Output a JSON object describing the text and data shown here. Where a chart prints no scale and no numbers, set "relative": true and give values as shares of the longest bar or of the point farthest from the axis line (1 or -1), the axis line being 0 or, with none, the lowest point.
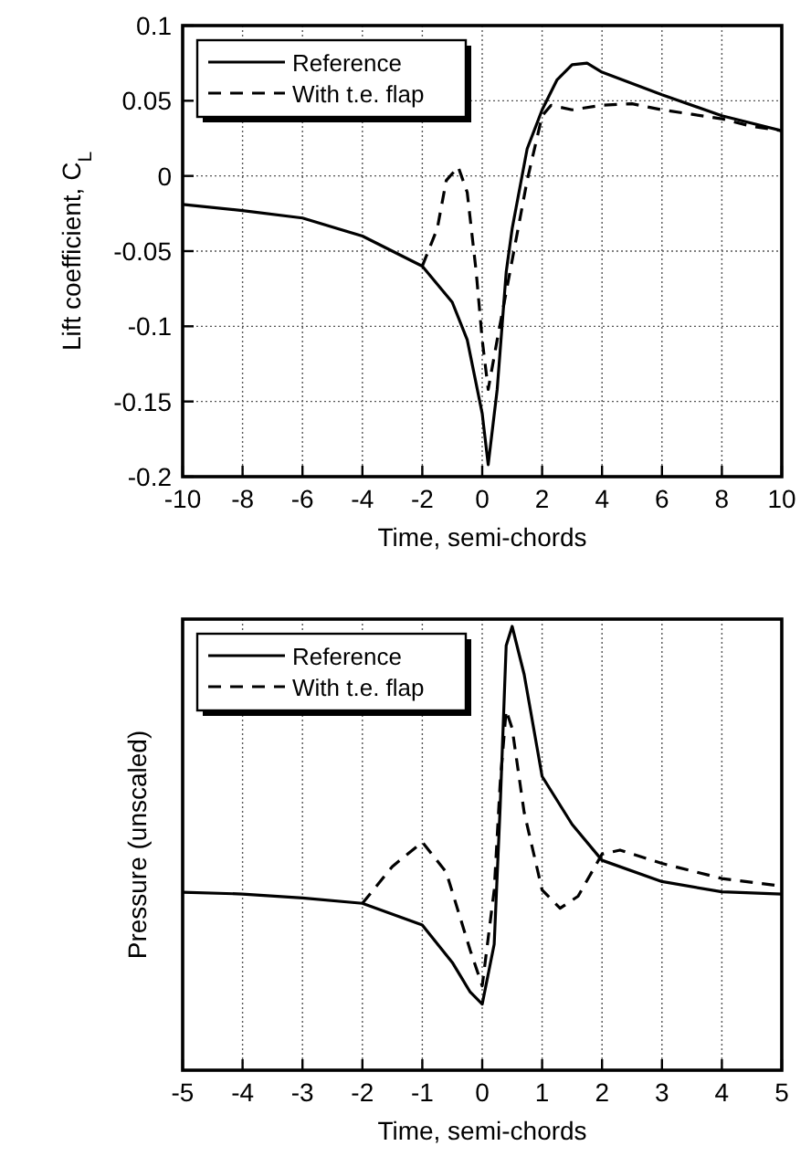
{
  "chart_data": [
    {
      "type": "line",
      "xlabel": "Time, semi-chords",
      "ylabel": "Lift coefficient, C$_{L}$",
      "xlim": [
        -10,
        10
      ],
      "xticks": [
        -10,
        -8,
        -6,
        -4,
        -2,
        0,
        2,
        4,
        6,
        8,
        10
      ],
      "ylim": [
        -0.2,
        0.1
      ],
      "yticks": [
        -0.2,
        -0.15,
        -0.1,
        -0.05,
        0,
        0.05,
        0.1
      ],
      "grid": true,
      "legend": "top left",
      "series": [
        {
          "name": "Reference",
          "color": "#000000",
          "line_style": "solid",
          "x": [
            -10,
            -8,
            -6,
            -4,
            -2,
            -1,
            -0.5,
            0,
            0.2,
            0.5,
            0.8,
            1,
            1.5,
            2,
            2.5,
            3,
            3.5,
            4,
            6,
            8,
            10
          ],
          "values": [
            -0.019,
            -0.023,
            -0.028,
            -0.04,
            -0.06,
            -0.084,
            -0.109,
            -0.158,
            -0.192,
            -0.142,
            -0.064,
            -0.035,
            0.018,
            0.044,
            0.064,
            0.074,
            0.075,
            0.069,
            0.054,
            0.04,
            0.03
          ]
        },
        {
          "name": "With t.e. flap",
          "color": "#000000",
          "line_style": "dashed",
          "x": [
            -2,
            -1.5,
            -1.2,
            -0.8,
            -0.5,
            -0.2,
            0,
            0.2,
            0.5,
            1,
            1.5,
            2,
            2.3,
            3,
            4,
            5,
            6,
            7,
            8,
            9,
            10
          ],
          "values": [
            -0.06,
            -0.035,
            -0.003,
            0.006,
            -0.011,
            -0.064,
            -0.109,
            -0.142,
            -0.109,
            -0.056,
            -0.003,
            0.04,
            0.047,
            0.044,
            0.047,
            0.048,
            0.044,
            0.041,
            0.038,
            0.033,
            0.03
          ]
        }
      ]
    },
    {
      "type": "line",
      "xlabel": "Time, semi-chords",
      "ylabel": "Pressure (unscaled)",
      "relative": true,
      "xlim": [
        -5,
        5
      ],
      "xticks": [
        -5,
        -4,
        -3,
        -2,
        -1,
        0,
        1,
        2,
        3,
        4,
        5
      ],
      "grid": "x",
      "legend": "top left",
      "series": [
        {
          "name": "Reference",
          "color": "#000000",
          "line_style": "solid",
          "x": [
            -5,
            -4,
            -3,
            -2,
            -1,
            -0.5,
            -0.2,
            0,
            0.2,
            0.3,
            0.4,
            0.5,
            0.7,
            1,
            1.5,
            2,
            3,
            4,
            5
          ],
          "values": [
            0.401,
            0.397,
            0.388,
            0.376,
            0.327,
            0.243,
            0.176,
            0.149,
            0.284,
            0.595,
            0.957,
            1,
            0.892,
            0.662,
            0.554,
            0.473,
            0.425,
            0.402,
            0.397
          ]
        },
        {
          "name": "With t.e. flap",
          "color": "#000000",
          "line_style": "dashed",
          "x": [
            -2,
            -1.5,
            -1,
            -0.6,
            -0.2,
            0,
            0.2,
            0.3,
            0.4,
            0.5,
            0.7,
            1,
            1.3,
            1.6,
            2,
            2.3,
            3,
            4,
            5
          ],
          "values": [
            0.376,
            0.459,
            0.514,
            0.446,
            0.27,
            0.19,
            0.406,
            0.648,
            0.811,
            0.77,
            0.581,
            0.406,
            0.365,
            0.392,
            0.487,
            0.496,
            0.466,
            0.432,
            0.415
          ]
        }
      ]
    }
  ]
}
